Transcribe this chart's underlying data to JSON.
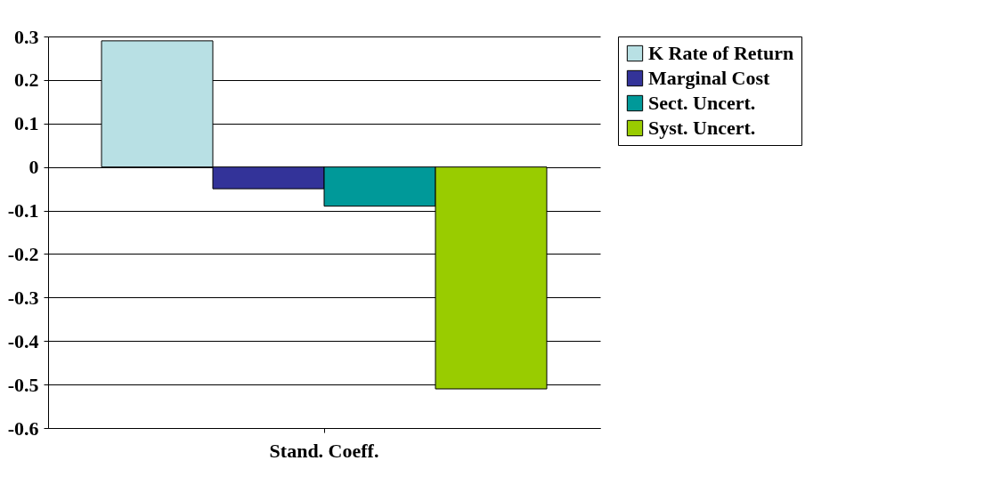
{
  "chart_data": {
    "type": "bar",
    "categories": [
      "Stand. Coeff."
    ],
    "series": [
      {
        "name": "K Rate of Return",
        "color": "#b8e0e4",
        "values": [
          0.29
        ]
      },
      {
        "name": "Marginal Cost",
        "color": "#333399",
        "values": [
          -0.05
        ]
      },
      {
        "name": "Sect. Uncert.",
        "color": "#009999",
        "values": [
          -0.09
        ]
      },
      {
        "name": "Syst. Uncert.",
        "color": "#99cc00",
        "values": [
          -0.51
        ]
      }
    ],
    "ylim": [
      -0.6,
      0.3
    ],
    "yticks": [
      0.3,
      0.2,
      0.1,
      0,
      -0.1,
      -0.2,
      -0.3,
      -0.4,
      -0.5,
      -0.6
    ],
    "grid": "y",
    "legend": "right"
  }
}
